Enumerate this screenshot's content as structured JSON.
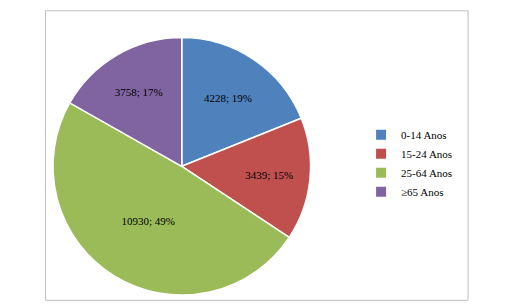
{
  "chart_data": {
    "type": "pie",
    "categories": [
      "0-14 Anos",
      "15-24 Anos",
      "25-64 Anos",
      "≥65 Anos"
    ],
    "values": [
      4228,
      3439,
      10930,
      3758
    ],
    "value_labels": [
      "4228; 19%",
      "3439; 15%",
      "10930; 49%",
      "3758; 17%"
    ],
    "colors": [
      "#4f81bd",
      "#c0504d",
      "#9bbb59",
      "#8064a2"
    ],
    "data_labels": true,
    "legend": "right"
  }
}
